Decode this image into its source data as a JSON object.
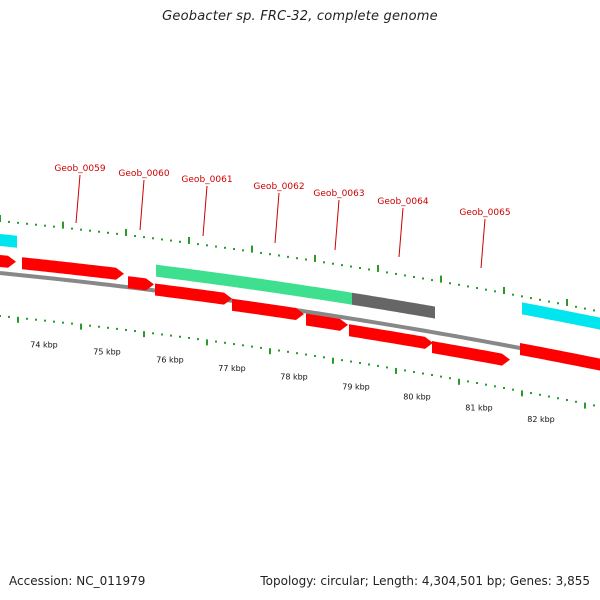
{
  "header": {
    "title": "Geobacter sp. FRC-32, complete genome"
  },
  "footer": {
    "accession": "Accession: NC_011979",
    "summary": "Topology: circular; Length: 4,304,501 bp; Genes: 3,855"
  },
  "colors": {
    "cds_forward": "#ff0000",
    "cds_reverse": "#ff0000",
    "other_feature_cyan": "#00e5ee",
    "other_feature_green": "#3ee08f",
    "other_feature_gray": "#666666",
    "backbone": "#888888",
    "tick": "#2a9a2a",
    "gene_label": "#cc0000"
  },
  "chart_data": {
    "type": "genome_map",
    "x_unit": "kbp",
    "ticks_kbp": [
      "74 kbp",
      "75 kbp",
      "76 kbp",
      "77 kbp",
      "78 kbp",
      "79 kbp",
      "80 kbp",
      "81 kbp",
      "82 kbp"
    ],
    "gene_labels": [
      "Geob_0059",
      "Geob_0060",
      "Geob_0061",
      "Geob_0062",
      "Geob_0063",
      "Geob_0064",
      "Geob_0065"
    ]
  }
}
